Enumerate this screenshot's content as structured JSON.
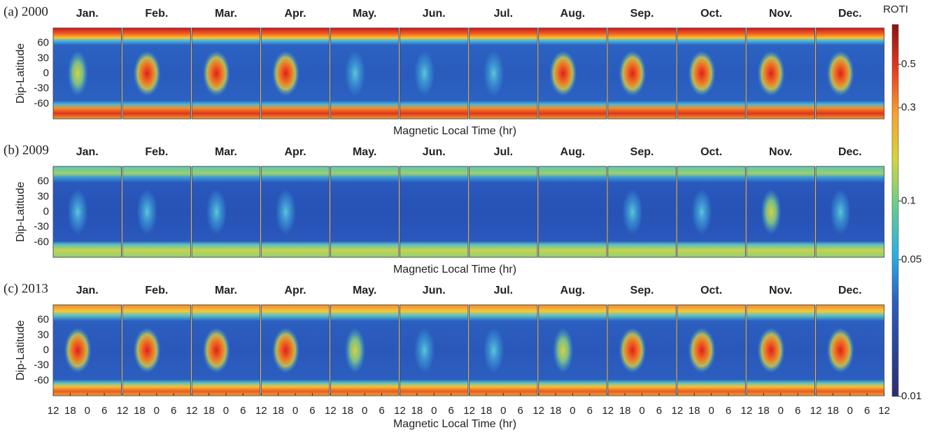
{
  "figure": {
    "rows": [
      {
        "label": "(a) 2000"
      },
      {
        "label": "(b) 2009"
      },
      {
        "label": "(c) 2013"
      }
    ],
    "months": [
      "Jan.",
      "Feb.",
      "Mar.",
      "Apr.",
      "May.",
      "Jun.",
      "Jul.",
      "Aug.",
      "Sep.",
      "Oct.",
      "Nov.",
      "Dec."
    ],
    "y_label": "Dip-Latitude",
    "ylim": [
      -90,
      90
    ],
    "yticks": [
      60,
      30,
      0,
      -30,
      -60
    ],
    "x_label": "Magnetic Local Time (hr)",
    "xlim": [
      12,
      36
    ],
    "xticks": [
      12,
      18,
      {
        "value": 24,
        "label": "0"
      },
      {
        "value": 30,
        "label": "6"
      },
      {
        "value": 36,
        "label": "12"
      }
    ],
    "colorbar": {
      "title": "ROTI",
      "scale": "log",
      "lim": [
        0.01,
        0.8
      ],
      "ticks": [
        0.01,
        0.05,
        0.1,
        0.3,
        0.5
      ]
    }
  }
}
